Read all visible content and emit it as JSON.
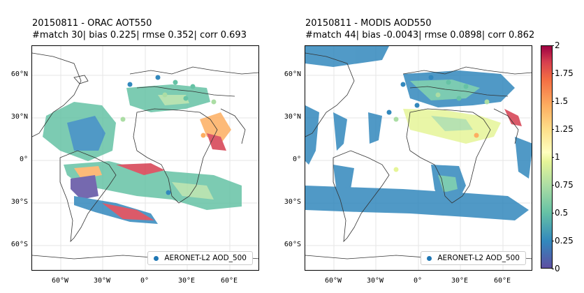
{
  "panels": [
    {
      "title_line1": "20150811 - ORAC AOT550",
      "title_line2": "#match 30| bias 0.225| rmse 0.352| corr 0.693",
      "legend_label": "AERONET-L2 AOD_500"
    },
    {
      "title_line1": "20150811 - MODIS AOD550",
      "title_line2": "#match 44| bias -0.0043| rmse 0.0898| corr 0.862",
      "legend_label": "AERONET-L2 AOD_500"
    }
  ],
  "lat_labels": [
    "60°N",
    "30°N",
    "0°",
    "30°S",
    "60°S"
  ],
  "lon_labels": [
    "60°W",
    "30°W",
    "0°",
    "30°E",
    "60°E"
  ],
  "colorbar": {
    "ticks": [
      "2",
      "1.75",
      "1.5",
      "1.25",
      "1",
      "0.75",
      "0.5",
      "0.25",
      "0"
    ],
    "min": 0,
    "max": 2,
    "colormap": "Spectral_r"
  },
  "colors": {
    "aeronet_marker": "#1f77b4",
    "frame": "#000000"
  }
}
